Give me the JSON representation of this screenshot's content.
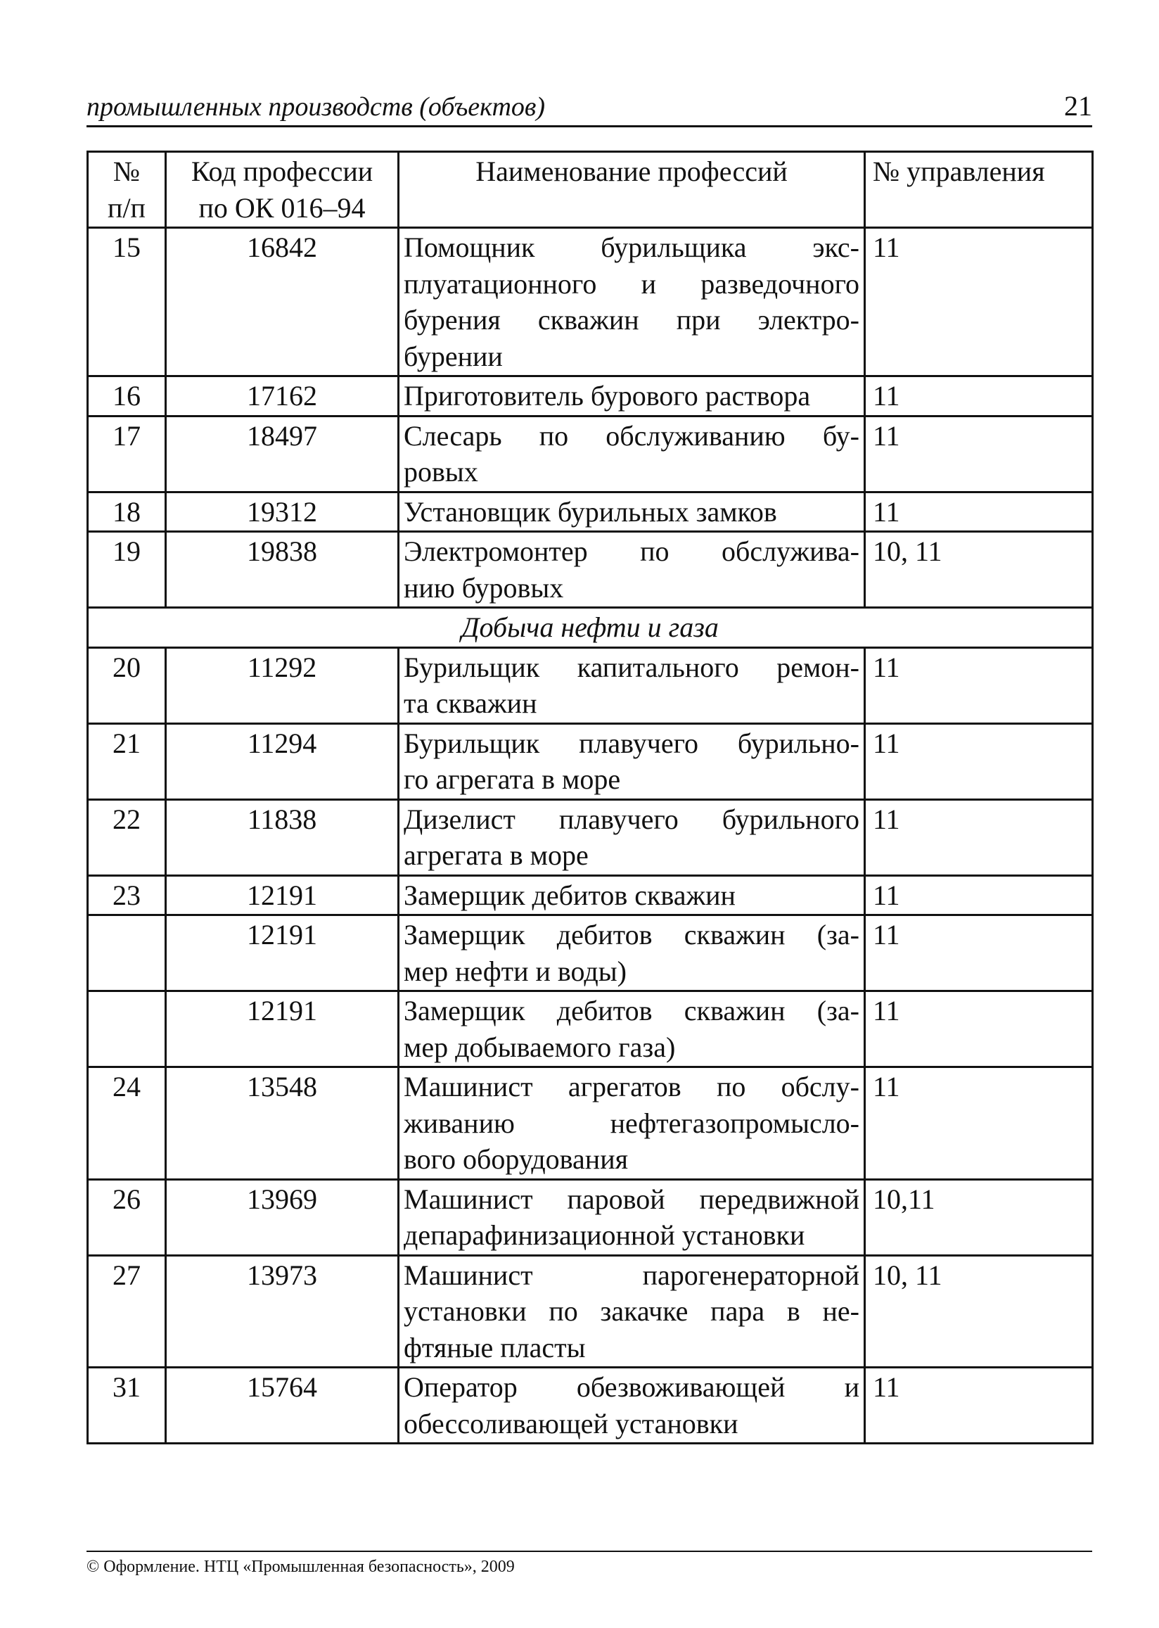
{
  "running_head": {
    "title": "промышленных производств (объектов)",
    "page_number": "21"
  },
  "table": {
    "headers": [
      [
        "№",
        "п/п"
      ],
      [
        "Код профессии",
        "по ОК 016–94"
      ],
      [
        "Наименование профессий"
      ],
      [
        "№ управления"
      ]
    ],
    "rows": [
      {
        "no": "15",
        "code": "16842",
        "name_lines": [
          "Помощник бурильщика экс-",
          "плуатационного и разведочного",
          "бурения скважин при электро-",
          "бурении"
        ],
        "dept": "11"
      },
      {
        "no": "16",
        "code": "17162",
        "name_lines": [
          "Приготовитель бурового раствора"
        ],
        "dept": "11"
      },
      {
        "no": "17",
        "code": "18497",
        "name_lines": [
          "Слесарь по обслуживанию бу-",
          "ровых"
        ],
        "dept": "11"
      },
      {
        "no": "18",
        "code": "19312",
        "name_lines": [
          "Установщик бурильных замков"
        ],
        "dept": "11"
      },
      {
        "no": "19",
        "code": "19838",
        "name_lines": [
          "Электромонтер по обслужива-",
          "нию буровых"
        ],
        "dept": "10, 11"
      },
      {
        "section": "Добыча нефти и газа"
      },
      {
        "no": "20",
        "code": "11292",
        "name_lines": [
          "Бурильщик капитального ремон-",
          "та скважин"
        ],
        "dept": "11"
      },
      {
        "no": "21",
        "code": "11294",
        "name_lines": [
          "Бурильщик плавучего бурильно-",
          "го агрегата в море"
        ],
        "dept": "11"
      },
      {
        "no": "22",
        "code": "11838",
        "name_lines": [
          "Дизелист плавучего бурильного",
          "агрегата в море"
        ],
        "dept": "11"
      },
      {
        "no": "23",
        "code": "12191",
        "name_lines": [
          "Замерщик дебитов скважин"
        ],
        "dept": "11"
      },
      {
        "no": "",
        "code": "12191",
        "name_lines": [
          "Замерщик дебитов скважин (за-",
          "мер нефти и воды)"
        ],
        "dept": "11"
      },
      {
        "no": "",
        "code": "12191",
        "name_lines": [
          "Замерщик дебитов скважин (за-",
          "мер добываемого газа)"
        ],
        "dept": "11"
      },
      {
        "no": "24",
        "code": "13548",
        "name_lines": [
          "Машинист агрегатов по обслу-",
          "живанию нефтегазопромысло-",
          "вого оборудования"
        ],
        "dept": "11"
      },
      {
        "no": "26",
        "code": "13969",
        "name_lines": [
          "Машинист паровой передвижной",
          "депарафинизационной установки"
        ],
        "dept": "10,11"
      },
      {
        "no": "27",
        "code": "13973",
        "name_lines": [
          "Машинист парогенераторной",
          "установки по закачке пара в не-",
          "фтяные пласты"
        ],
        "dept": "10, 11"
      },
      {
        "no": "31",
        "code": "15764",
        "name_lines": [
          "Оператор обезвоживающей и",
          "обессоливающей установки"
        ],
        "dept": "11"
      }
    ]
  },
  "footer": {
    "copyright": "© Оформление. НТЦ «Промышленная безопасность», 2009"
  }
}
